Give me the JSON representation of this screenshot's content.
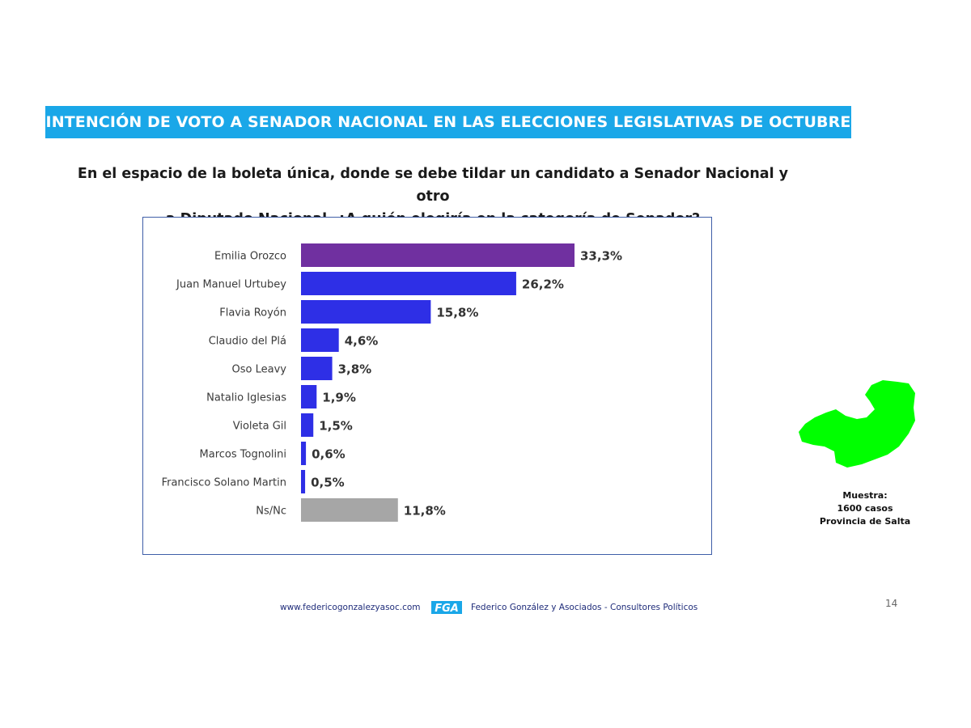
{
  "header": {
    "title": "INTENCIÓN DE VOTO A SENADOR NACIONAL EN LAS ELECCIONES LEGISLATIVAS DE OCTUBRE"
  },
  "question": {
    "line1": "En el espacio de la boleta única, donde se debe tildar un candidato a Senador Nacional y otro",
    "line2": "a Diputado Nacional, ¿A quién elegiría en la categoría de Senador?"
  },
  "chart_data": {
    "type": "bar",
    "orientation": "horizontal",
    "categories": [
      "Emilia Orozco",
      "Juan Manuel Urtubey",
      "Flavia Royón",
      "Claudio del Plá",
      "Oso Leavy",
      "Natalio Iglesias",
      "Violeta Gil",
      "Marcos Tognolini",
      "Francisco Solano Martin",
      "Ns/Nc"
    ],
    "values": [
      33.3,
      26.2,
      15.8,
      4.6,
      3.8,
      1.9,
      1.5,
      0.6,
      0.5,
      11.8
    ],
    "labels": [
      "33,3%",
      "26,2%",
      "15,8%",
      "4,6%",
      "3,8%",
      "1,9%",
      "1,5%",
      "0,6%",
      "0,5%",
      "11,8%"
    ],
    "colors": [
      "#7030a0",
      "#2e2fe6",
      "#2e2fe6",
      "#2e2fe6",
      "#2e2fe6",
      "#2e2fe6",
      "#2e2fe6",
      "#2e2fe6",
      "#2e2fe6",
      "#a6a6a6"
    ],
    "xlim": [
      0,
      33.3
    ],
    "grid": false,
    "legend": false
  },
  "sample": {
    "line1": "Muestra:",
    "line2": "1600 casos",
    "line3": "Provincia de Salta"
  },
  "footer": {
    "url": "www.federicogonzalezyasoc.com",
    "logo_text": "FGA",
    "company": "Federico González y Asociados - Consultores Políticos",
    "page_number": "14"
  },
  "colors": {
    "banner": "#1aa7e8",
    "chart_border": "#3f5ea8",
    "map_fill": "#00ff00",
    "footer_text": "#1f2c7a"
  },
  "icons": {
    "map": "salta-province-map",
    "logo": "fga-logo"
  }
}
